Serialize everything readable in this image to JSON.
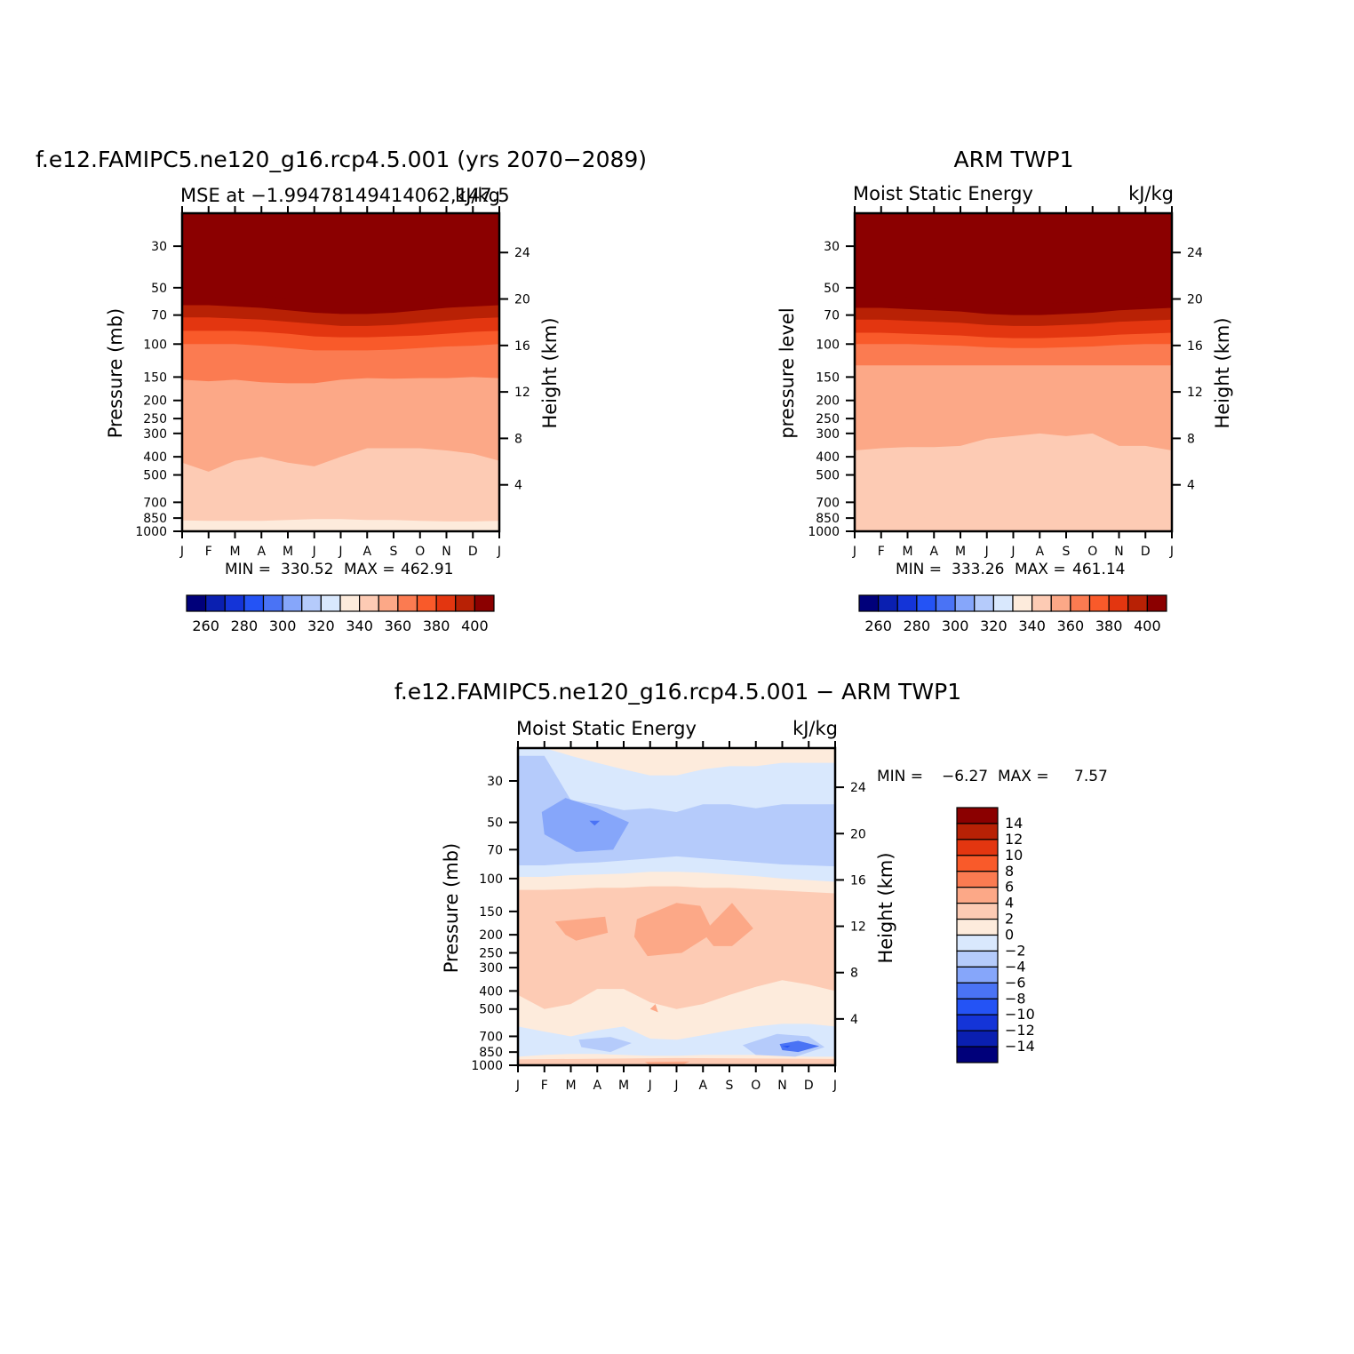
{
  "colors": {
    "mse_levels": [
      250,
      260,
      270,
      280,
      290,
      300,
      310,
      320,
      330,
      340,
      350,
      360,
      370,
      380,
      390,
      400
    ],
    "mse_fills": [
      "#00007a",
      "#0a1fb0",
      "#1434d8",
      "#2453f5",
      "#4a73f5",
      "#86a6fa",
      "#b5cbfb",
      "#d9e8fd",
      "#fdebdc",
      "#fdcbb4",
      "#fca887",
      "#fb7b51",
      "#f95a2a",
      "#e33610",
      "#b82105",
      "#8b0000"
    ],
    "diff_levels": [
      -14,
      -12,
      -10,
      -8,
      -6,
      -4,
      -2,
      0,
      2,
      4,
      6,
      8,
      10,
      12,
      14
    ],
    "diff_fills": [
      "#00007a",
      "#0a1fb0",
      "#1434d8",
      "#2453f5",
      "#4a73f5",
      "#86a6fa",
      "#b5cbfb",
      "#d9e8fd",
      "#fdebdc",
      "#fdcbb4",
      "#fca887",
      "#fb7b51",
      "#f95a2a",
      "#e33610",
      "#b82105",
      "#8b0000"
    ]
  },
  "chart_data": [
    {
      "type": "heatmap",
      "title": "f.e12.FAMIPC5.ne120_g16.rcp4.5.001 (yrs 2070−2089)",
      "left_string": "MSE at −1.99478149414062,147.5",
      "right_string": "kJ/kg",
      "ylabel": "Pressure (mb)",
      "ylabel_right": "Height (km)",
      "x_ticks": [
        "J",
        "F",
        "M",
        "A",
        "M",
        "J",
        "J",
        "A",
        "S",
        "O",
        "N",
        "D",
        "J"
      ],
      "y_ticks": [
        30,
        50,
        70,
        100,
        150,
        200,
        250,
        300,
        400,
        500,
        700,
        850,
        1000
      ],
      "y_ticks_right": [
        24,
        20,
        16,
        12,
        8,
        4
      ],
      "ylim": [
        1000,
        20
      ],
      "y_scale": "log",
      "min_label": "MIN =",
      "min_value": "330.52",
      "max_label": "MAX =",
      "max_value": "462.91",
      "colorbar_labels": [
        "260",
        "280",
        "300",
        "320",
        "340",
        "360",
        "380",
        "400"
      ],
      "contours": {
        "x_months": [
          0,
          1,
          2,
          3,
          4,
          5,
          6,
          7,
          8,
          9,
          10,
          11,
          12
        ],
        "level_pressure": {
          "330": [
            1000,
            1000,
            1000,
            1000,
            1000,
            1000,
            1000,
            1000,
            1000,
            1000,
            1000,
            1000,
            1000
          ],
          "340": [
            875,
            880,
            880,
            880,
            870,
            860,
            860,
            870,
            870,
            880,
            885,
            885,
            880
          ],
          "350": [
            430,
            480,
            420,
            400,
            430,
            450,
            400,
            360,
            360,
            360,
            370,
            385,
            420
          ],
          "360": [
            155,
            158,
            155,
            160,
            162,
            162,
            155,
            152,
            153,
            152,
            152,
            150,
            152
          ],
          "370": [
            100,
            100,
            100,
            102,
            105,
            108,
            108,
            108,
            107,
            105,
            103,
            102,
            100
          ],
          "380": [
            85,
            85,
            85,
            86,
            88,
            91,
            92,
            92,
            91,
            90,
            88,
            86,
            85
          ],
          "390": [
            72,
            72,
            73,
            74,
            76,
            78,
            80,
            80,
            79,
            77,
            75,
            73,
            72
          ],
          "400": [
            62,
            62,
            63,
            64,
            66,
            68,
            69,
            69,
            68,
            66,
            64,
            63,
            62
          ],
          "410": [
            53,
            53,
            53,
            55,
            57,
            59,
            60,
            60,
            59,
            57,
            55,
            54,
            53
          ]
        }
      }
    },
    {
      "type": "heatmap",
      "title": "ARM TWP1",
      "left_string": "Moist Static Energy",
      "right_string": "kJ/kg",
      "ylabel": "pressure level",
      "ylabel_right": "Height (km)",
      "x_ticks": [
        "J",
        "F",
        "M",
        "A",
        "M",
        "J",
        "J",
        "A",
        "S",
        "O",
        "N",
        "D",
        "J"
      ],
      "y_ticks": [
        30,
        50,
        70,
        100,
        150,
        200,
        250,
        300,
        400,
        500,
        700,
        850,
        1000
      ],
      "y_ticks_right": [
        24,
        20,
        16,
        12,
        8,
        4
      ],
      "ylim": [
        1000,
        20
      ],
      "y_scale": "log",
      "min_label": "MIN =",
      "min_value": "333.26",
      "max_label": "MAX =",
      "max_value": "461.14",
      "colorbar_labels": [
        "260",
        "280",
        "300",
        "320",
        "340",
        "360",
        "380",
        "400"
      ],
      "contours": {
        "x_months": [
          0,
          1,
          2,
          3,
          4,
          5,
          6,
          7,
          8,
          9,
          10,
          11,
          12
        ],
        "level_pressure": {
          "340": [
            850,
            855,
            870,
            830,
            840,
            880,
            890,
            890,
            890,
            880,
            850,
            850,
            850
          ],
          "350": [
            370,
            360,
            355,
            355,
            350,
            320,
            310,
            300,
            310,
            300,
            350,
            350,
            370
          ],
          "360": [
            130,
            130,
            130,
            130,
            130,
            130,
            130,
            130,
            130,
            130,
            130,
            130,
            130
          ],
          "370": [
            100,
            100,
            100,
            101,
            102,
            104,
            105,
            105,
            104,
            103,
            101,
            100,
            100
          ],
          "380": [
            87,
            87,
            88,
            89,
            90,
            92,
            93,
            93,
            92,
            91,
            89,
            88,
            87
          ],
          "390": [
            74,
            74,
            75,
            76,
            77,
            79,
            80,
            80,
            79,
            78,
            76,
            75,
            74
          ],
          "400": [
            64,
            64,
            65,
            66,
            67,
            69,
            70,
            70,
            69,
            68,
            66,
            65,
            64
          ],
          "410": [
            55,
            55,
            56,
            57,
            58,
            60,
            61,
            61,
            60,
            59,
            57,
            56,
            55
          ]
        }
      }
    },
    {
      "type": "heatmap",
      "title": "f.e12.FAMIPC5.ne120_g16.rcp4.5.001 − ARM TWP1",
      "left_string": "Moist Static Energy",
      "right_string": "kJ/kg",
      "ylabel": "Pressure (mb)",
      "ylabel_right": "Height (km)",
      "x_ticks": [
        "J",
        "F",
        "M",
        "A",
        "M",
        "J",
        "J",
        "A",
        "S",
        "O",
        "N",
        "D",
        "J"
      ],
      "y_ticks": [
        30,
        50,
        70,
        100,
        150,
        200,
        250,
        300,
        400,
        500,
        700,
        850,
        1000
      ],
      "y_ticks_right": [
        24,
        20,
        16,
        12,
        8,
        4
      ],
      "ylim": [
        1000,
        20
      ],
      "y_scale": "log",
      "min_label": "MIN =",
      "min_value": "−6.27",
      "max_label": "MAX =",
      "max_value": "7.57",
      "colorbar_labels": [
        "14",
        "12",
        "10",
        "8",
        "6",
        "4",
        "2",
        "0",
        "−2",
        "−4",
        "−6",
        "−8",
        "−10",
        "−12",
        "−14"
      ],
      "bands": {
        "x_months": [
          0,
          1,
          2,
          3,
          4,
          5,
          6,
          7,
          8,
          9,
          10,
          11,
          12
        ],
        "band_-2_0_top": [
          20,
          20,
          22,
          24,
          26,
          28,
          28,
          26,
          25,
          25,
          24,
          24,
          24
        ],
        "band_-4_-2_top": [
          22,
          22,
          38,
          40,
          43,
          42,
          44,
          40,
          40,
          42,
          40,
          40,
          40
        ],
        "band_-4_-2_bottom": [
          85,
          85,
          83,
          82,
          80,
          78,
          76,
          78,
          80,
          82,
          84,
          85,
          86
        ],
        "band_0_2_top": [
          98,
          98,
          96,
          95,
          94,
          92,
          92,
          93,
          95,
          97,
          100,
          102,
          104
        ],
        "band_2_4_top": [
          115,
          115,
          114,
          112,
          112,
          110,
          110,
          112,
          112,
          114,
          116,
          118,
          120
        ],
        "band_2_4_bottom": [
          420,
          500,
          470,
          390,
          390,
          460,
          500,
          470,
          420,
          380,
          350,
          370,
          400
        ],
        "band_0_2_bottom": [
          620,
          660,
          700,
          650,
          620,
          720,
          730,
          690,
          650,
          620,
          600,
          600,
          620
        ],
        "band_-2_0_bottom": [
          900,
          880,
          870,
          870,
          880,
          890,
          890,
          880,
          880,
          880,
          890,
          900,
          900
        ]
      }
    }
  ]
}
